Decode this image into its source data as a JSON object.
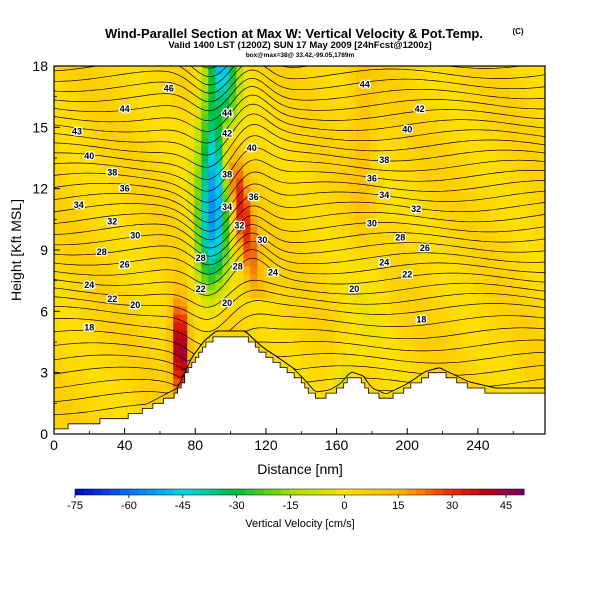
{
  "chart_data": {
    "type": "heatmap",
    "title": "Wind-Parallel Section at Max W: Vertical Velocity & Pot.Temp.",
    "title_mark": "(C)",
    "subtitle": "Valid 1400 LST (1200Z) SUN 17 May 2009 [24hFcst@1200z]",
    "subsubtitle": "box@max=38@ 33.42,-99.05,1789m",
    "xlabel": "Distance [nm]",
    "ylabel": "Height [Kft MSL]",
    "xlim": [
      0,
      278
    ],
    "ylim": [
      0,
      18
    ],
    "x_ticks": [
      0,
      40,
      80,
      120,
      160,
      200,
      240
    ],
    "y_ticks": [
      0,
      3,
      6,
      9,
      12,
      15,
      18
    ],
    "terrain": {
      "x": [
        0,
        10,
        40,
        50,
        70,
        78,
        85,
        92,
        108,
        118,
        125,
        135,
        142,
        148,
        156,
        162,
        168,
        175,
        180,
        188,
        200,
        210,
        218,
        235,
        250,
        268,
        278
      ],
      "kft": [
        0.3,
        0.4,
        0.8,
        1.1,
        2.0,
        3.5,
        4.3,
        4.8,
        4.8,
        4.0,
        3.6,
        3.0,
        2.4,
        1.8,
        1.9,
        2.2,
        2.8,
        2.6,
        2.0,
        1.7,
        2.2,
        2.8,
        3.0,
        2.3,
        2.0,
        2.0,
        2.0
      ]
    },
    "colorbar": {
      "label": "Vertical Velocity [cm/s]",
      "ticks": [
        -75,
        -60,
        -45,
        -30,
        -15,
        0,
        15,
        30,
        45
      ],
      "range": [
        -75,
        50
      ]
    },
    "theta_contour_labels": [
      {
        "text": "46",
        "x": 65,
        "kft": 16.9
      },
      {
        "text": "44",
        "x": 40,
        "kft": 15.9
      },
      {
        "text": "43",
        "x": 13,
        "kft": 14.8
      },
      {
        "text": "40",
        "x": 20,
        "kft": 13.6
      },
      {
        "text": "38",
        "x": 33,
        "kft": 12.8
      },
      {
        "text": "36",
        "x": 40,
        "kft": 12.0
      },
      {
        "text": "34",
        "x": 14,
        "kft": 11.2
      },
      {
        "text": "32",
        "x": 33,
        "kft": 10.4
      },
      {
        "text": "30",
        "x": 46,
        "kft": 9.7
      },
      {
        "text": "28",
        "x": 27,
        "kft": 8.9
      },
      {
        "text": "26",
        "x": 40,
        "kft": 8.3
      },
      {
        "text": "24",
        "x": 20,
        "kft": 7.3
      },
      {
        "text": "22",
        "x": 33,
        "kft": 6.6
      },
      {
        "text": "20",
        "x": 46,
        "kft": 6.3
      },
      {
        "text": "18",
        "x": 20,
        "kft": 5.2
      },
      {
        "text": "44",
        "x": 98,
        "kft": 15.7
      },
      {
        "text": "42",
        "x": 98,
        "kft": 14.7
      },
      {
        "text": "40",
        "x": 112,
        "kft": 14.0
      },
      {
        "text": "38",
        "x": 98,
        "kft": 12.7
      },
      {
        "text": "36",
        "x": 113,
        "kft": 11.6
      },
      {
        "text": "34",
        "x": 98,
        "kft": 11.1
      },
      {
        "text": "32",
        "x": 105,
        "kft": 10.2
      },
      {
        "text": "30",
        "x": 118,
        "kft": 9.5
      },
      {
        "text": "28",
        "x": 83,
        "kft": 8.6
      },
      {
        "text": "28",
        "x": 104,
        "kft": 8.2
      },
      {
        "text": "24",
        "x": 124,
        "kft": 7.9
      },
      {
        "text": "22",
        "x": 83,
        "kft": 7.1
      },
      {
        "text": "20",
        "x": 98,
        "kft": 6.4
      },
      {
        "text": "44",
        "x": 176,
        "kft": 17.1
      },
      {
        "text": "42",
        "x": 207,
        "kft": 15.9
      },
      {
        "text": "40",
        "x": 200,
        "kft": 14.9
      },
      {
        "text": "38",
        "x": 187,
        "kft": 13.4
      },
      {
        "text": "36",
        "x": 180,
        "kft": 12.5
      },
      {
        "text": "34",
        "x": 187,
        "kft": 11.7
      },
      {
        "text": "32",
        "x": 205,
        "kft": 11.0
      },
      {
        "text": "30",
        "x": 180,
        "kft": 10.3
      },
      {
        "text": "28",
        "x": 196,
        "kft": 9.6
      },
      {
        "text": "26",
        "x": 210,
        "kft": 9.1
      },
      {
        "text": "24",
        "x": 187,
        "kft": 8.4
      },
      {
        "text": "22",
        "x": 200,
        "kft": 7.8
      },
      {
        "text": "20",
        "x": 170,
        "kft": 7.1
      },
      {
        "text": "18",
        "x": 208,
        "kft": 5.6
      }
    ]
  }
}
